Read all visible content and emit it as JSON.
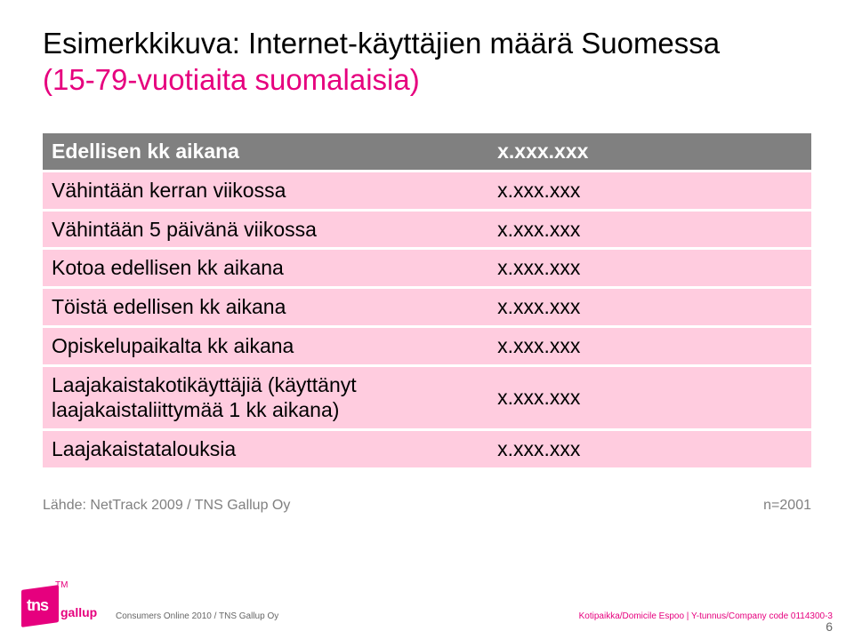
{
  "title": {
    "line1": "Esimerkkikuva: Internet-käyttäjien määrä Suomessa",
    "line2": "(15-79-vuotiaita suomalaisia)",
    "color_main": "#000000",
    "color_sub": "#e6007e",
    "fontsize": 33
  },
  "table": {
    "header_bg": "#808080",
    "header_fg": "#ffffff",
    "row_bg": "#ffccdf",
    "row_fg": "#000000",
    "label_fontsize": 23,
    "value_fontsize": 23,
    "col_widths_pct": [
      58,
      42
    ],
    "rows": [
      {
        "label": "Edellisen kk aikana",
        "value": "x.xxx.xxx",
        "header": true
      },
      {
        "label": "Vähintään kerran viikossa",
        "value": "x.xxx.xxx"
      },
      {
        "label": "Vähintään 5 päivänä viikossa",
        "value": "x.xxx.xxx"
      },
      {
        "label": "Kotoa edellisen kk aikana",
        "value": "x.xxx.xxx"
      },
      {
        "label": "Töistä edellisen kk aikana",
        "value": "x.xxx.xxx"
      },
      {
        "label": "Opiskelupaikalta kk aikana",
        "value": "x.xxx.xxx"
      },
      {
        "label": "Laajakaistakotikäyttäjiä (käyttänyt laajakaistaliittymää 1 kk aikana)",
        "value": "x.xxx.xxx"
      },
      {
        "label": "Laajakaistatalouksia",
        "value": "x.xxx.xxx"
      }
    ]
  },
  "source": {
    "left": "Lähde: NetTrack 2009 / TNS Gallup Oy",
    "right": "n=2001",
    "color": "#808080",
    "fontsize": 16
  },
  "footer": {
    "left": "Consumers Online 2010 / TNS Gallup Oy",
    "right": "Kotipaikka/Domicile Espoo | Y-tunnus/Company code 0114300-3",
    "page": "6",
    "left_color": "#666666",
    "right_color": "#e6007e"
  },
  "logo": {
    "tns": "tns",
    "gallup": "gallup",
    "tm": "TM",
    "box_color": "#e6007e"
  }
}
